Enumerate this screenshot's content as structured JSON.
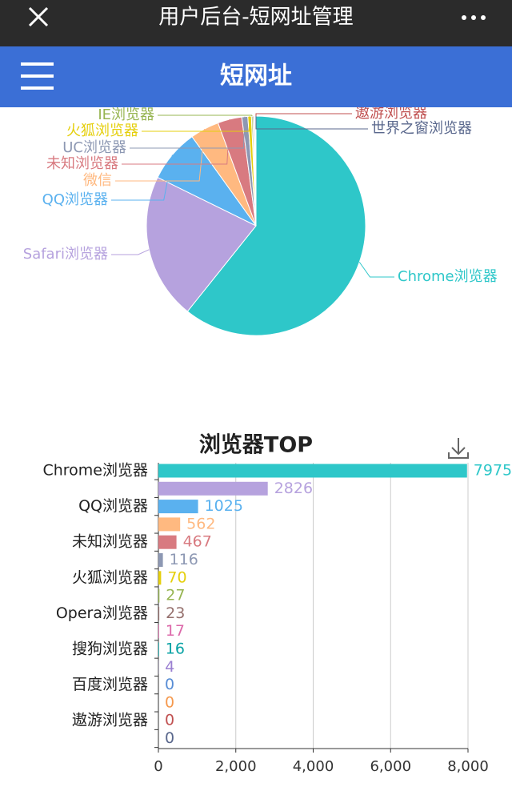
{
  "header": {
    "title": "用户后台-短网址管理",
    "nav_title": "短网址"
  },
  "chart_data": [
    {
      "type": "pie",
      "categories": [
        "Chrome浏览器",
        "Safari浏览器",
        "QQ浏览器",
        "微信",
        "未知浏览器",
        "UC浏览器",
        "火狐浏览器",
        "IE浏览器",
        null,
        null,
        null,
        null,
        null,
        null,
        "遨游浏览器",
        "世界之窗浏览器"
      ],
      "values": [
        7975,
        2826,
        1025,
        562,
        467,
        116,
        70,
        27,
        23,
        17,
        16,
        4,
        0,
        0,
        0,
        0
      ],
      "colors": [
        "#2ec7c9",
        "#b6a2de",
        "#5ab1ef",
        "#ffb980",
        "#d87a80",
        "#8d98b3",
        "#e5cf0d",
        "#97b552",
        "#95706d",
        "#dc69aa",
        "#07a2a4",
        "#9a7fd1",
        "#588dd5",
        "#f5994e",
        "#c05050",
        "#59678c"
      ]
    },
    {
      "type": "hbar",
      "title": "浏览器TOP",
      "categories": [
        "Chrome浏览器",
        null,
        "QQ浏览器",
        null,
        "未知浏览器",
        null,
        "火狐浏览器",
        null,
        "Opera浏览器",
        null,
        "搜狗浏览器",
        null,
        "百度浏览器",
        null,
        "遨游浏览器",
        null
      ],
      "values": [
        7975,
        2826,
        1025,
        562,
        467,
        116,
        70,
        27,
        23,
        17,
        16,
        4,
        0,
        0,
        0,
        0
      ],
      "colors": [
        "#2ec7c9",
        "#b6a2de",
        "#5ab1ef",
        "#ffb980",
        "#d87a80",
        "#8d98b3",
        "#e5cf0d",
        "#97b552",
        "#95706d",
        "#dc69aa",
        "#07a2a4",
        "#9a7fd1",
        "#588dd5",
        "#f5994e",
        "#c05050",
        "#59678c"
      ],
      "xlim": [
        0,
        8000
      ],
      "xticks": [
        0,
        {
          "value": 2000,
          "label": "2,000"
        },
        {
          "value": 4000,
          "label": "4,000"
        },
        {
          "value": 6000,
          "label": "6,000"
        },
        {
          "value": 8000,
          "label": "8,000"
        }
      ],
      "grid": true
    }
  ]
}
